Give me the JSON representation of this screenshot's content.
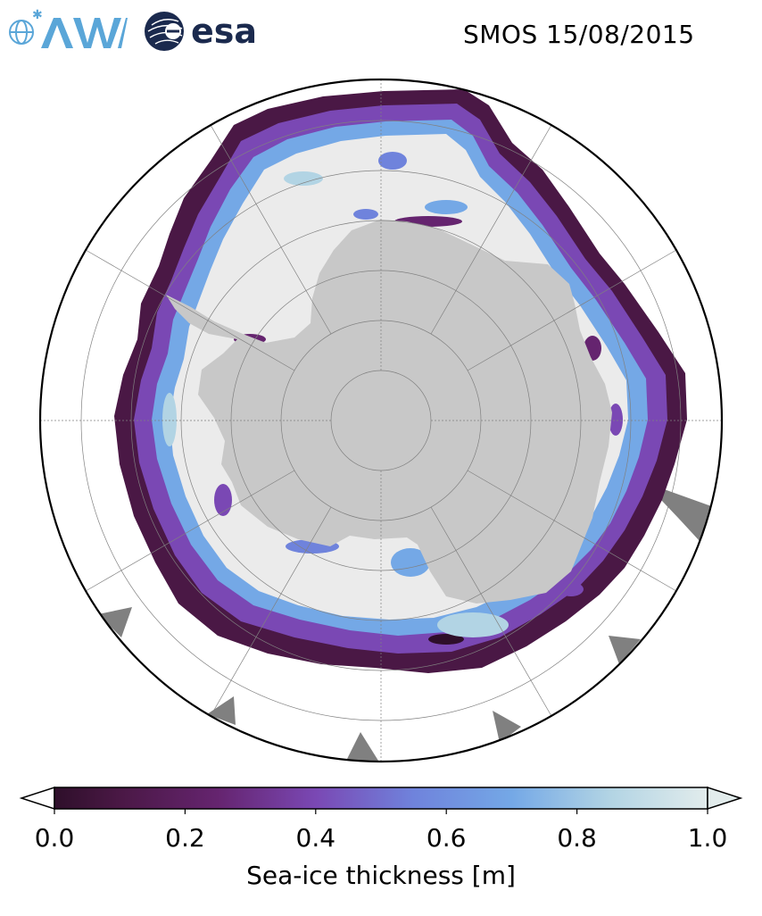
{
  "header": {
    "title": "SMOS 15/08/2015",
    "logos": [
      {
        "name": "awi-logo",
        "text": "AWI",
        "color": "#5aa6d8"
      },
      {
        "name": "esa-logo",
        "text": "esa",
        "color": "#1b2a4e"
      }
    ]
  },
  "map": {
    "projection": "south-polar-stereographic",
    "graticule_latitudes": [
      -80,
      -70,
      -60,
      -50,
      -40
    ],
    "graticule_longitudes": [
      0,
      30,
      60,
      90,
      120,
      150,
      180,
      210,
      240,
      270,
      300,
      330
    ],
    "colors": {
      "land": "#c8c8c8",
      "thick_ice": "#ebebeb",
      "ocean": "#ffffff",
      "outside_grid": "#808080",
      "graticule": "#808080"
    }
  },
  "colorbar": {
    "label": "Sea-ice thickness [m]",
    "ticks": [
      "0.0",
      "0.2",
      "0.4",
      "0.6",
      "0.8",
      "1.0"
    ],
    "min": 0.0,
    "max": 1.0,
    "extend": "both",
    "colormap_stops": [
      {
        "value": 0.0,
        "color": "#2e0f2a"
      },
      {
        "value": 0.1,
        "color": "#4a1845"
      },
      {
        "value": 0.25,
        "color": "#65246f"
      },
      {
        "value": 0.4,
        "color": "#7a48b4"
      },
      {
        "value": 0.55,
        "color": "#6f83dc"
      },
      {
        "value": 0.7,
        "color": "#74a8e6"
      },
      {
        "value": 0.85,
        "color": "#b2d4e4"
      },
      {
        "value": 1.0,
        "color": "#e2ecec"
      }
    ]
  }
}
